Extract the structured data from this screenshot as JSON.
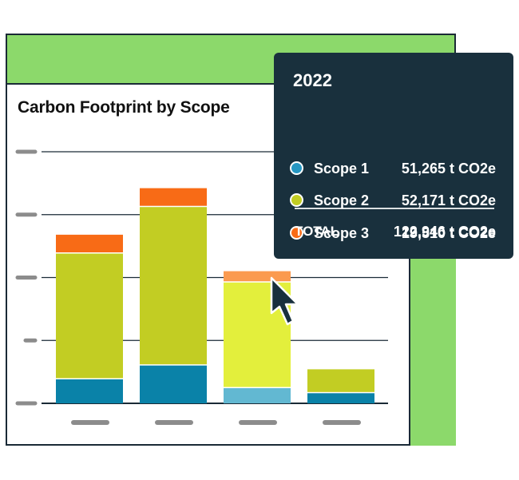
{
  "title": "Carbon Footprint by Scope",
  "colors": {
    "header": "#8cd96b",
    "frame": "#1a2a36",
    "tooltip_bg": "#19303d",
    "scope1": "#0a82a8",
    "scope2": "#c2cd23",
    "scope3": "#f86b16",
    "scope1_highlight": "#62b8d2",
    "scope2_highlight": "#e3ef3c",
    "scope3_highlight": "#fb9a4f",
    "axis_placeholder": "#8c8c8c"
  },
  "chart_data": {
    "type": "bar",
    "stacked": true,
    "categories": [
      "",
      "",
      "",
      ""
    ],
    "ylim": [
      0,
      200
    ],
    "grid": true,
    "highlighted_index": 2,
    "series": [
      {
        "name": "Scope 1",
        "values": [
          20,
          31,
          13,
          9
        ]
      },
      {
        "name": "Scope 2",
        "values": [
          100,
          126,
          84,
          19
        ]
      },
      {
        "name": "Scope 3",
        "values": [
          15,
          15,
          9,
          0
        ]
      }
    ]
  },
  "tooltip": {
    "year": "2022",
    "rows": [
      {
        "icon": "scope1-dot",
        "label": "Scope 1",
        "value": "51,265 t CO2e"
      },
      {
        "icon": "scope2-dot",
        "label": "Scope 2",
        "value": "52,171 t CO2e"
      },
      {
        "icon": "scope3-dot",
        "label": "Scope 3",
        "value": "19,510 t CO2e"
      }
    ],
    "total_label": "TOTAL",
    "total_value": "122,946 t CO2e"
  },
  "cursor_icon": "arrow-pointer-icon"
}
